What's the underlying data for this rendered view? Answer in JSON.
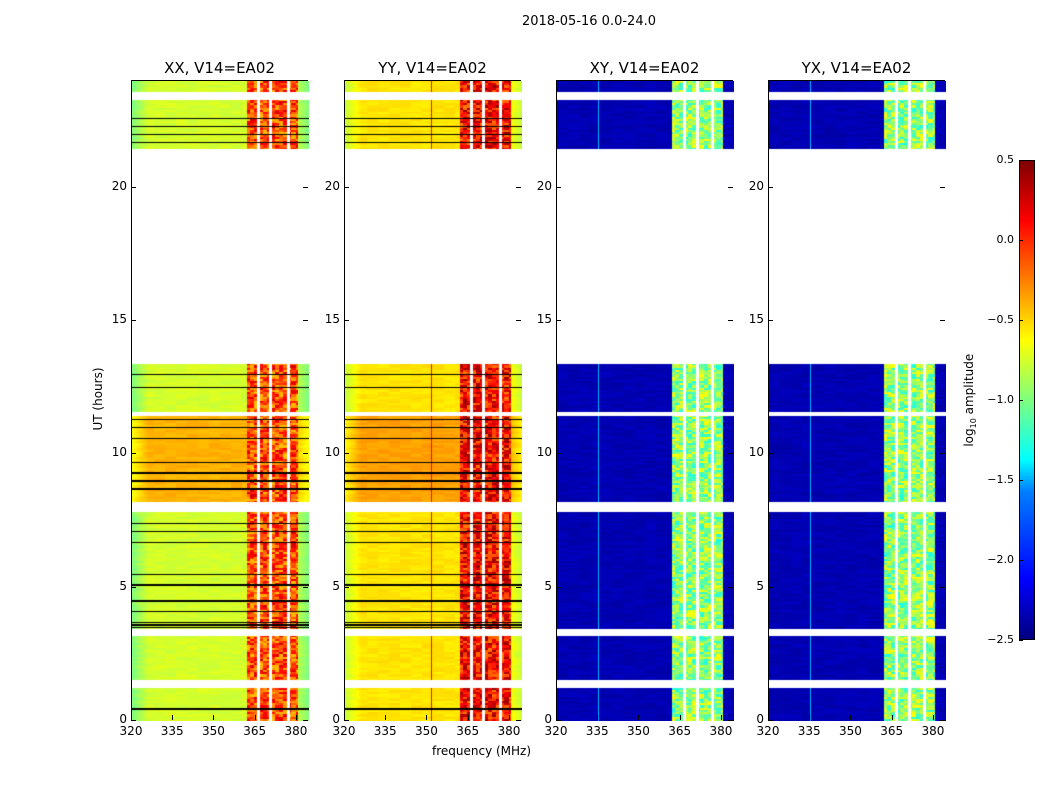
{
  "chart_data": {
    "type": "heatmap",
    "title": "2018-05-16 0.0-24.0",
    "xlabel": "frequency (MHz)",
    "ylabel": "UT (hours)",
    "xlim": [
      320,
      384.4
    ],
    "ylim": [
      0,
      24
    ],
    "xticks": [
      "320",
      "335",
      "350",
      "365",
      "380"
    ],
    "xtick_values": [
      320,
      335,
      350,
      365,
      380
    ],
    "yticks": [
      "0",
      "5",
      "10",
      "15",
      "20"
    ],
    "ytick_values": [
      0,
      5,
      10,
      15,
      20
    ],
    "time_segments": [
      [
        0,
        1.25
      ],
      [
        1.55,
        3.2
      ],
      [
        3.45,
        7.85
      ],
      [
        8.2,
        11.45
      ],
      [
        11.6,
        13.4
      ],
      [
        21.45,
        23.3
      ],
      [
        23.6,
        24
      ]
    ],
    "flag_lines": [
      0.45,
      3.5,
      3.6,
      3.7,
      4.1,
      4.5,
      5.1,
      5.5,
      6.7,
      7.1,
      7.4,
      8.7,
      9.0,
      9.3,
      9.7,
      10.6,
      11.0,
      11.3,
      12.5,
      13.0,
      21.7,
      22.0,
      22.3,
      22.6
    ],
    "rfi_band_mhz": [
      362,
      380.5
    ],
    "panels": [
      {
        "title": "XX, V14=EA02",
        "base": -0.75,
        "base_mid": -0.4,
        "band": -0.1,
        "gaps": [
          366,
          370.5,
          377
        ],
        "line": null
      },
      {
        "title": "YY, V14=EA02",
        "base": -0.55,
        "base_mid": -0.35,
        "band": 0.1,
        "gaps": [
          366,
          370.5,
          376.5
        ],
        "line": 351.5
      },
      {
        "title": "XY, V14=EA02",
        "base": -2.35,
        "base_mid": -2.35,
        "band": -0.95,
        "gaps": [
          366.5,
          371,
          376.5
        ],
        "line": 335
      },
      {
        "title": "YX, V14=EA02",
        "base": -2.35,
        "base_mid": -2.35,
        "band": -0.95,
        "gaps": [
          366.5,
          371,
          376.5
        ],
        "line": 335
      }
    ],
    "colorbar": {
      "label": "log10 amplitude",
      "range": [
        -2.5,
        0.5
      ],
      "ticks": [
        "0.5",
        "0.0",
        "−0.5",
        "−1.0",
        "−1.5",
        "−2.0",
        "−2.5"
      ],
      "tick_values": [
        0.5,
        0,
        -0.5,
        -1,
        -1.5,
        -2,
        -2.5
      ],
      "colormap": "jet"
    }
  }
}
